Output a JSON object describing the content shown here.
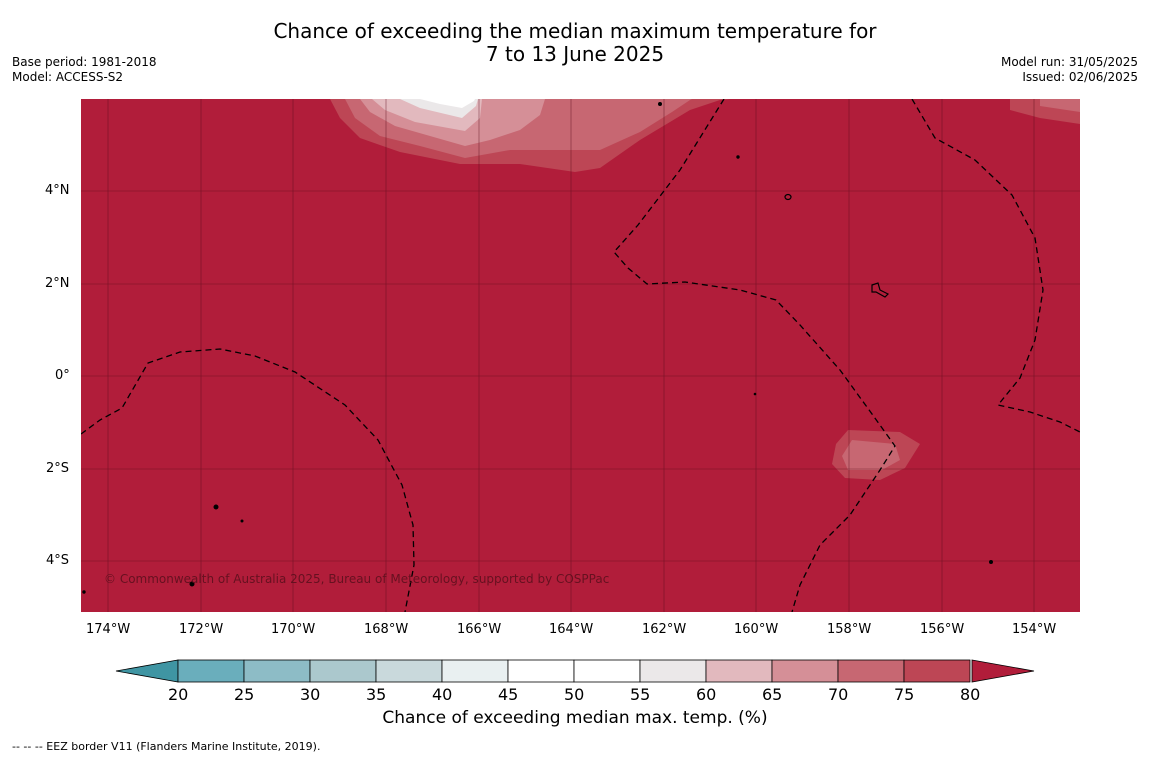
{
  "title_line1": "Chance of exceeding the median maximum temperature for",
  "title_line2": "7 to 13 June 2025",
  "base_period": "Base period: 1981-2018",
  "model": "Model: ACCESS-S2",
  "model_run": "Model run: 31/05/2025",
  "issued": "Issued: 02/06/2025",
  "copyright": "© Commonwealth of Australia 2025, Bureau of Meteorology, supported by COSPPac",
  "footnote": "--  --  -- EEZ border V11 (Flanders Marine Institute, 2019).",
  "lon_ticks": [
    "174°W",
    "172°W",
    "170°W",
    "168°W",
    "166°W",
    "164°W",
    "162°W",
    "160°W",
    "158°W",
    "156°W",
    "154°W"
  ],
  "lat_ticks": [
    "4°N",
    "2°N",
    "0°",
    "2°S",
    "4°S"
  ],
  "colorbar": {
    "title": "Chance of exceeding median max. temp. (%)",
    "labels": [
      "20",
      "25",
      "30",
      "35",
      "40",
      "45",
      "50",
      "55",
      "60",
      "65",
      "70",
      "75",
      "80"
    ],
    "colors": [
      "#3f95a3",
      "#6aaebc",
      "#8dbcc6",
      "#abc8cd",
      "#c9d9dc",
      "#e9f0f1",
      "#ffffff",
      "#ffffff",
      "#ebe8e9",
      "#e2b9be",
      "#d58f97",
      "#c76772",
      "#bd4655",
      "#b11d3a"
    ]
  },
  "map_colors": {
    "dominant": "#b11d3a",
    "level_75": "#bd4655",
    "level_70": "#c76772",
    "level_65": "#d58f97",
    "level_60": "#e2b9be",
    "level_55": "#ebe8e9",
    "level_50": "#ffffff"
  }
}
